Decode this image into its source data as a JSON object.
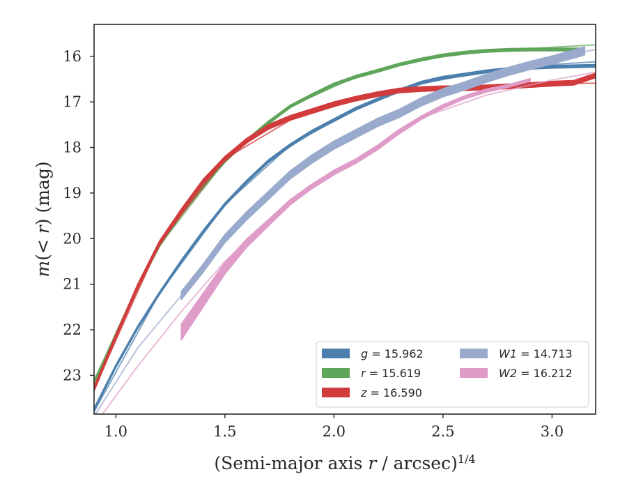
{
  "chart_data": {
    "type": "line",
    "title": "",
    "xlabel": "(Semi-major axis r / arcsec)",
    "xlabel_italic": "r",
    "xlabel_superscript": "1/4",
    "ylabel": "m(< r) (mag)",
    "xlim": [
      0.9,
      3.2
    ],
    "ylim": [
      23.85,
      15.3
    ],
    "y_inverted": true,
    "grid": false,
    "xticks": [
      1.0,
      1.5,
      2.0,
      2.5,
      3.0
    ],
    "xtick_labels": [
      "1.0",
      "1.5",
      "2.0",
      "2.5",
      "3.0"
    ],
    "yticks": [
      16,
      17,
      18,
      19,
      20,
      21,
      22,
      23
    ],
    "ytick_labels": [
      "16",
      "17",
      "18",
      "19",
      "20",
      "21",
      "22",
      "23"
    ],
    "legend": {
      "placement": "lower-right",
      "ncol": 2
    },
    "series": [
      {
        "name": "g = 15.962",
        "color": "#4C7FAD",
        "kind": "band",
        "x": [
          0.9,
          1.0,
          1.1,
          1.2,
          1.3,
          1.4,
          1.5,
          1.6,
          1.7,
          1.8,
          1.9,
          2.0,
          2.1,
          2.2,
          2.3,
          2.4,
          2.5,
          2.6,
          2.7,
          2.8,
          2.9,
          3.0,
          3.1,
          3.2
        ],
        "y": [
          23.75,
          22.8,
          21.95,
          21.2,
          20.5,
          19.85,
          19.25,
          18.75,
          18.3,
          17.95,
          17.65,
          17.4,
          17.15,
          16.95,
          16.75,
          16.58,
          16.47,
          16.4,
          16.33,
          16.28,
          16.25,
          16.23,
          16.22,
          16.21
        ],
        "width": 0.06,
        "model": {
          "x": [
            0.9,
            1.2,
            1.5,
            1.8,
            2.1,
            2.4,
            2.7,
            3.0,
            3.2
          ],
          "y": [
            23.8,
            21.2,
            19.25,
            17.95,
            17.15,
            16.6,
            16.33,
            16.18,
            16.12
          ]
        }
      },
      {
        "name": "r = 15.619",
        "color": "#5FA55A",
        "kind": "band",
        "x": [
          0.9,
          1.0,
          1.1,
          1.2,
          1.3,
          1.4,
          1.5,
          1.6,
          1.7,
          1.8,
          1.9,
          2.0,
          2.1,
          2.2,
          2.3,
          2.4,
          2.5,
          2.6,
          2.7,
          2.8,
          2.9,
          3.0,
          3.1,
          3.15
        ],
        "y": [
          23.15,
          22.1,
          21.05,
          20.15,
          19.45,
          18.85,
          18.3,
          17.85,
          17.45,
          17.1,
          16.85,
          16.62,
          16.45,
          16.32,
          16.18,
          16.07,
          15.98,
          15.92,
          15.88,
          15.86,
          15.85,
          15.85,
          15.85,
          15.85
        ],
        "width": 0.06,
        "model": {
          "x": [
            0.9,
            1.2,
            1.5,
            1.8,
            2.1,
            2.4,
            2.7,
            3.0,
            3.2
          ],
          "y": [
            23.1,
            20.15,
            18.3,
            17.1,
            16.45,
            16.07,
            15.89,
            15.8,
            15.75
          ]
        }
      },
      {
        "name": "z = 16.590",
        "color": "#D13B3B",
        "kind": "band",
        "x": [
          0.9,
          1.0,
          1.1,
          1.2,
          1.3,
          1.4,
          1.5,
          1.6,
          1.7,
          1.8,
          1.9,
          2.0,
          2.1,
          2.2,
          2.3,
          2.4,
          2.5,
          2.6,
          2.7,
          2.8,
          2.9,
          3.0,
          3.1,
          3.2
        ],
        "y": [
          23.3,
          22.15,
          21.05,
          20.1,
          19.4,
          18.75,
          18.25,
          17.85,
          17.55,
          17.35,
          17.2,
          17.05,
          16.93,
          16.83,
          16.75,
          16.72,
          16.7,
          16.7,
          16.68,
          16.66,
          16.63,
          16.6,
          16.58,
          16.42
        ],
        "width": 0.1,
        "model": {
          "x": [
            0.9,
            1.2,
            1.5,
            1.8,
            2.1,
            2.4,
            2.7,
            3.0,
            3.2
          ],
          "y": [
            23.3,
            20.1,
            18.25,
            17.4,
            16.95,
            16.72,
            16.64,
            16.6,
            16.59
          ]
        }
      },
      {
        "name": "W1 = 14.713",
        "color": "#9AAACD",
        "kind": "band",
        "x": [
          1.3,
          1.4,
          1.5,
          1.6,
          1.7,
          1.8,
          1.9,
          2.0,
          2.1,
          2.2,
          2.3,
          2.4,
          2.5,
          2.6,
          2.7,
          2.8,
          2.9,
          3.0,
          3.1,
          3.15
        ],
        "y": [
          21.25,
          20.65,
          20.0,
          19.5,
          19.05,
          18.6,
          18.25,
          17.95,
          17.7,
          17.45,
          17.25,
          17.0,
          16.8,
          16.65,
          16.48,
          16.33,
          16.2,
          16.08,
          15.95,
          15.88
        ],
        "width": 0.18,
        "model": {
          "x": [
            0.9,
            1.1,
            1.3,
            1.5,
            1.8,
            2.1,
            2.4,
            2.7,
            3.0,
            3.2
          ],
          "y": [
            23.9,
            22.4,
            21.25,
            20.0,
            18.6,
            17.7,
            17.0,
            16.45,
            16.05,
            15.85
          ]
        }
      },
      {
        "name": "W2 = 16.212",
        "color": "#E09CC8",
        "kind": "band",
        "x": [
          1.3,
          1.4,
          1.5,
          1.6,
          1.7,
          1.8,
          1.9,
          2.0,
          2.1,
          2.2,
          2.3,
          2.4,
          2.5,
          2.6,
          2.7,
          2.8,
          2.9
        ],
        "y": [
          22.05,
          21.35,
          20.65,
          20.1,
          19.65,
          19.2,
          18.85,
          18.55,
          18.3,
          18.0,
          17.65,
          17.35,
          17.1,
          16.9,
          16.75,
          16.65,
          16.52
        ],
        "width": [
          0.35,
          0.3,
          0.25,
          0.18,
          0.14,
          0.12,
          0.1,
          0.1,
          0.1,
          0.1,
          0.1,
          0.08,
          0.08,
          0.07,
          0.07,
          0.06,
          0.06
        ],
        "model": {
          "x": [
            0.9,
            1.1,
            1.3,
            1.5,
            1.8,
            2.1,
            2.4,
            2.7,
            3.0,
            3.2
          ],
          "y": [
            24.1,
            22.8,
            21.6,
            20.5,
            19.2,
            18.3,
            17.35,
            16.85,
            16.52,
            16.35
          ]
        }
      }
    ]
  }
}
